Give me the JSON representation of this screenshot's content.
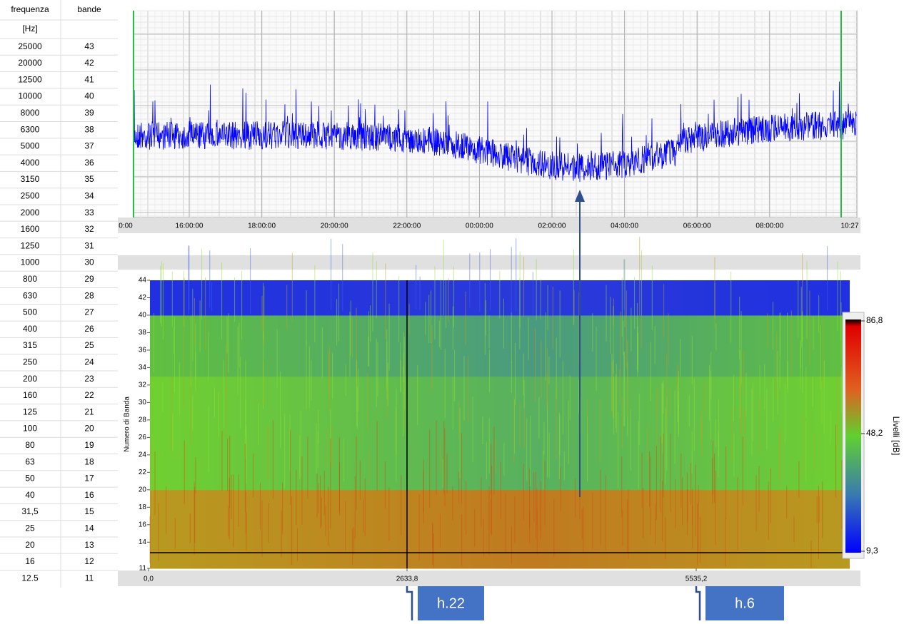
{
  "table": {
    "header": [
      "frequenza",
      "bande"
    ],
    "unit": "[Hz]",
    "rows": [
      [
        "25000",
        "43"
      ],
      [
        "20000",
        "42"
      ],
      [
        "12500",
        "41"
      ],
      [
        "10000",
        "40"
      ],
      [
        "8000",
        "39"
      ],
      [
        "6300",
        "38"
      ],
      [
        "5000",
        "37"
      ],
      [
        "4000",
        "36"
      ],
      [
        "3150",
        "35"
      ],
      [
        "2500",
        "34"
      ],
      [
        "2000",
        "33"
      ],
      [
        "1600",
        "32"
      ],
      [
        "1250",
        "31"
      ],
      [
        "1000",
        "30"
      ],
      [
        "800",
        "29"
      ],
      [
        "630",
        "28"
      ],
      [
        "500",
        "27"
      ],
      [
        "400",
        "26"
      ],
      [
        "315",
        "25"
      ],
      [
        "250",
        "24"
      ],
      [
        "200",
        "23"
      ],
      [
        "160",
        "22"
      ],
      [
        "125",
        "21"
      ],
      [
        "100",
        "20"
      ],
      [
        "80",
        "19"
      ],
      [
        "63",
        "18"
      ],
      [
        "50",
        "17"
      ],
      [
        "40",
        "16"
      ],
      [
        "31,5",
        "15"
      ],
      [
        "25",
        "14"
      ],
      [
        "20",
        "13"
      ],
      [
        "16",
        "12"
      ],
      [
        "12.5",
        "11"
      ]
    ]
  },
  "level_plot": {
    "xtick_labels": [
      "0:00",
      "16:00:00",
      "18:00:00",
      "20:00:00",
      "22:00:00",
      "00:00:00",
      "02:00:00",
      "04:00:00",
      "06:00:00",
      "08:00:00",
      "10:27"
    ],
    "color": "#0000ff"
  },
  "spectrogram": {
    "ylabel": "Numero di Banda",
    "ylim": [
      11,
      44
    ],
    "yticks": [
      44,
      42,
      40,
      38,
      36,
      34,
      32,
      30,
      28,
      26,
      24,
      22,
      20,
      18,
      16,
      14,
      11
    ],
    "xtick_labels": [
      "0,0",
      "2633,8",
      "5535,2"
    ],
    "colorbar": {
      "title": "Livelli [dB]",
      "labels": [
        "86,8",
        "48,2",
        "9,3"
      ]
    }
  },
  "callouts": [
    "h.22",
    "h.6"
  ]
}
